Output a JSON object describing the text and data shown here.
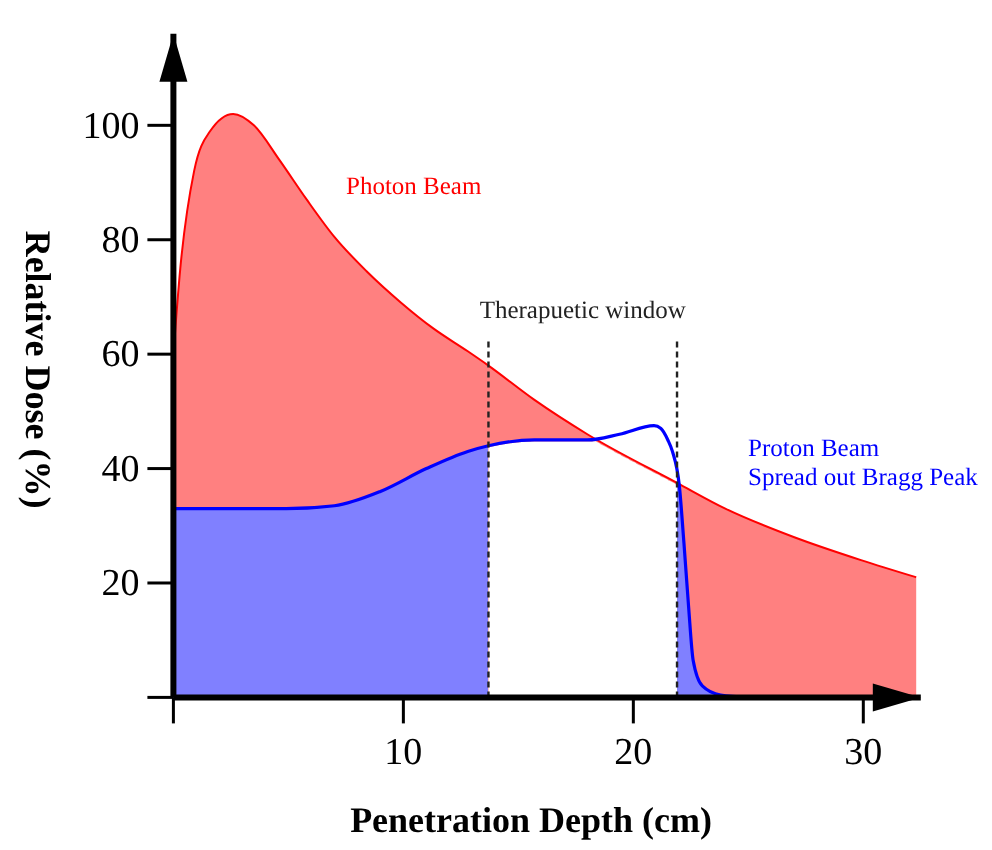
{
  "chart_data": {
    "type": "area",
    "xlabel": "Penetration Depth (cm)",
    "ylabel": "Relative Dose (%)",
    "xlim": [
      0,
      32.5
    ],
    "ylim": [
      0,
      116
    ],
    "xticks": [
      {
        "value": 0,
        "label": null
      },
      10,
      20,
      30
    ],
    "yticks": [
      {
        "value": 0,
        "label": null
      },
      20,
      40,
      60,
      80,
      100
    ],
    "series": [
      {
        "name": "Photon Beam",
        "color": "#ff0000",
        "x": [
          0,
          0.3,
          0.9,
          1.6,
          2.6,
          3.5,
          4.6,
          5.8,
          7,
          8.4,
          9.9,
          11.3,
          12.8,
          13.7,
          15.7,
          18,
          21.9,
          24,
          27,
          29.9,
          32.3
        ],
        "values": [
          60,
          75,
          92,
          99,
          102,
          100,
          94,
          87,
          80.5,
          74.5,
          69,
          64.5,
          60.5,
          58,
          52,
          46,
          37.5,
          33,
          28,
          24,
          21
        ]
      },
      {
        "name": "Proton Beam\nSpread out Bragg Peak",
        "color": "#0000ff",
        "x": [
          0,
          2,
          4.9,
          7,
          9,
          11,
          12.8,
          13.7,
          15.7,
          18,
          19.4,
          20.9,
          21.2,
          21.5,
          21.7,
          22,
          22.2,
          22.4,
          22.6,
          23,
          23.8,
          25
        ],
        "values": [
          33,
          33,
          33,
          33.5,
          36,
          40,
          43,
          44,
          45,
          45,
          46,
          47.5,
          47,
          45,
          43,
          37,
          27,
          16,
          6.5,
          2,
          0.4,
          0
        ]
      }
    ],
    "bands": [
      {
        "axis": "x",
        "from": 13.7,
        "to": 21.9,
        "label": "Therapuetic window",
        "color": "#ffffff"
      }
    ]
  }
}
